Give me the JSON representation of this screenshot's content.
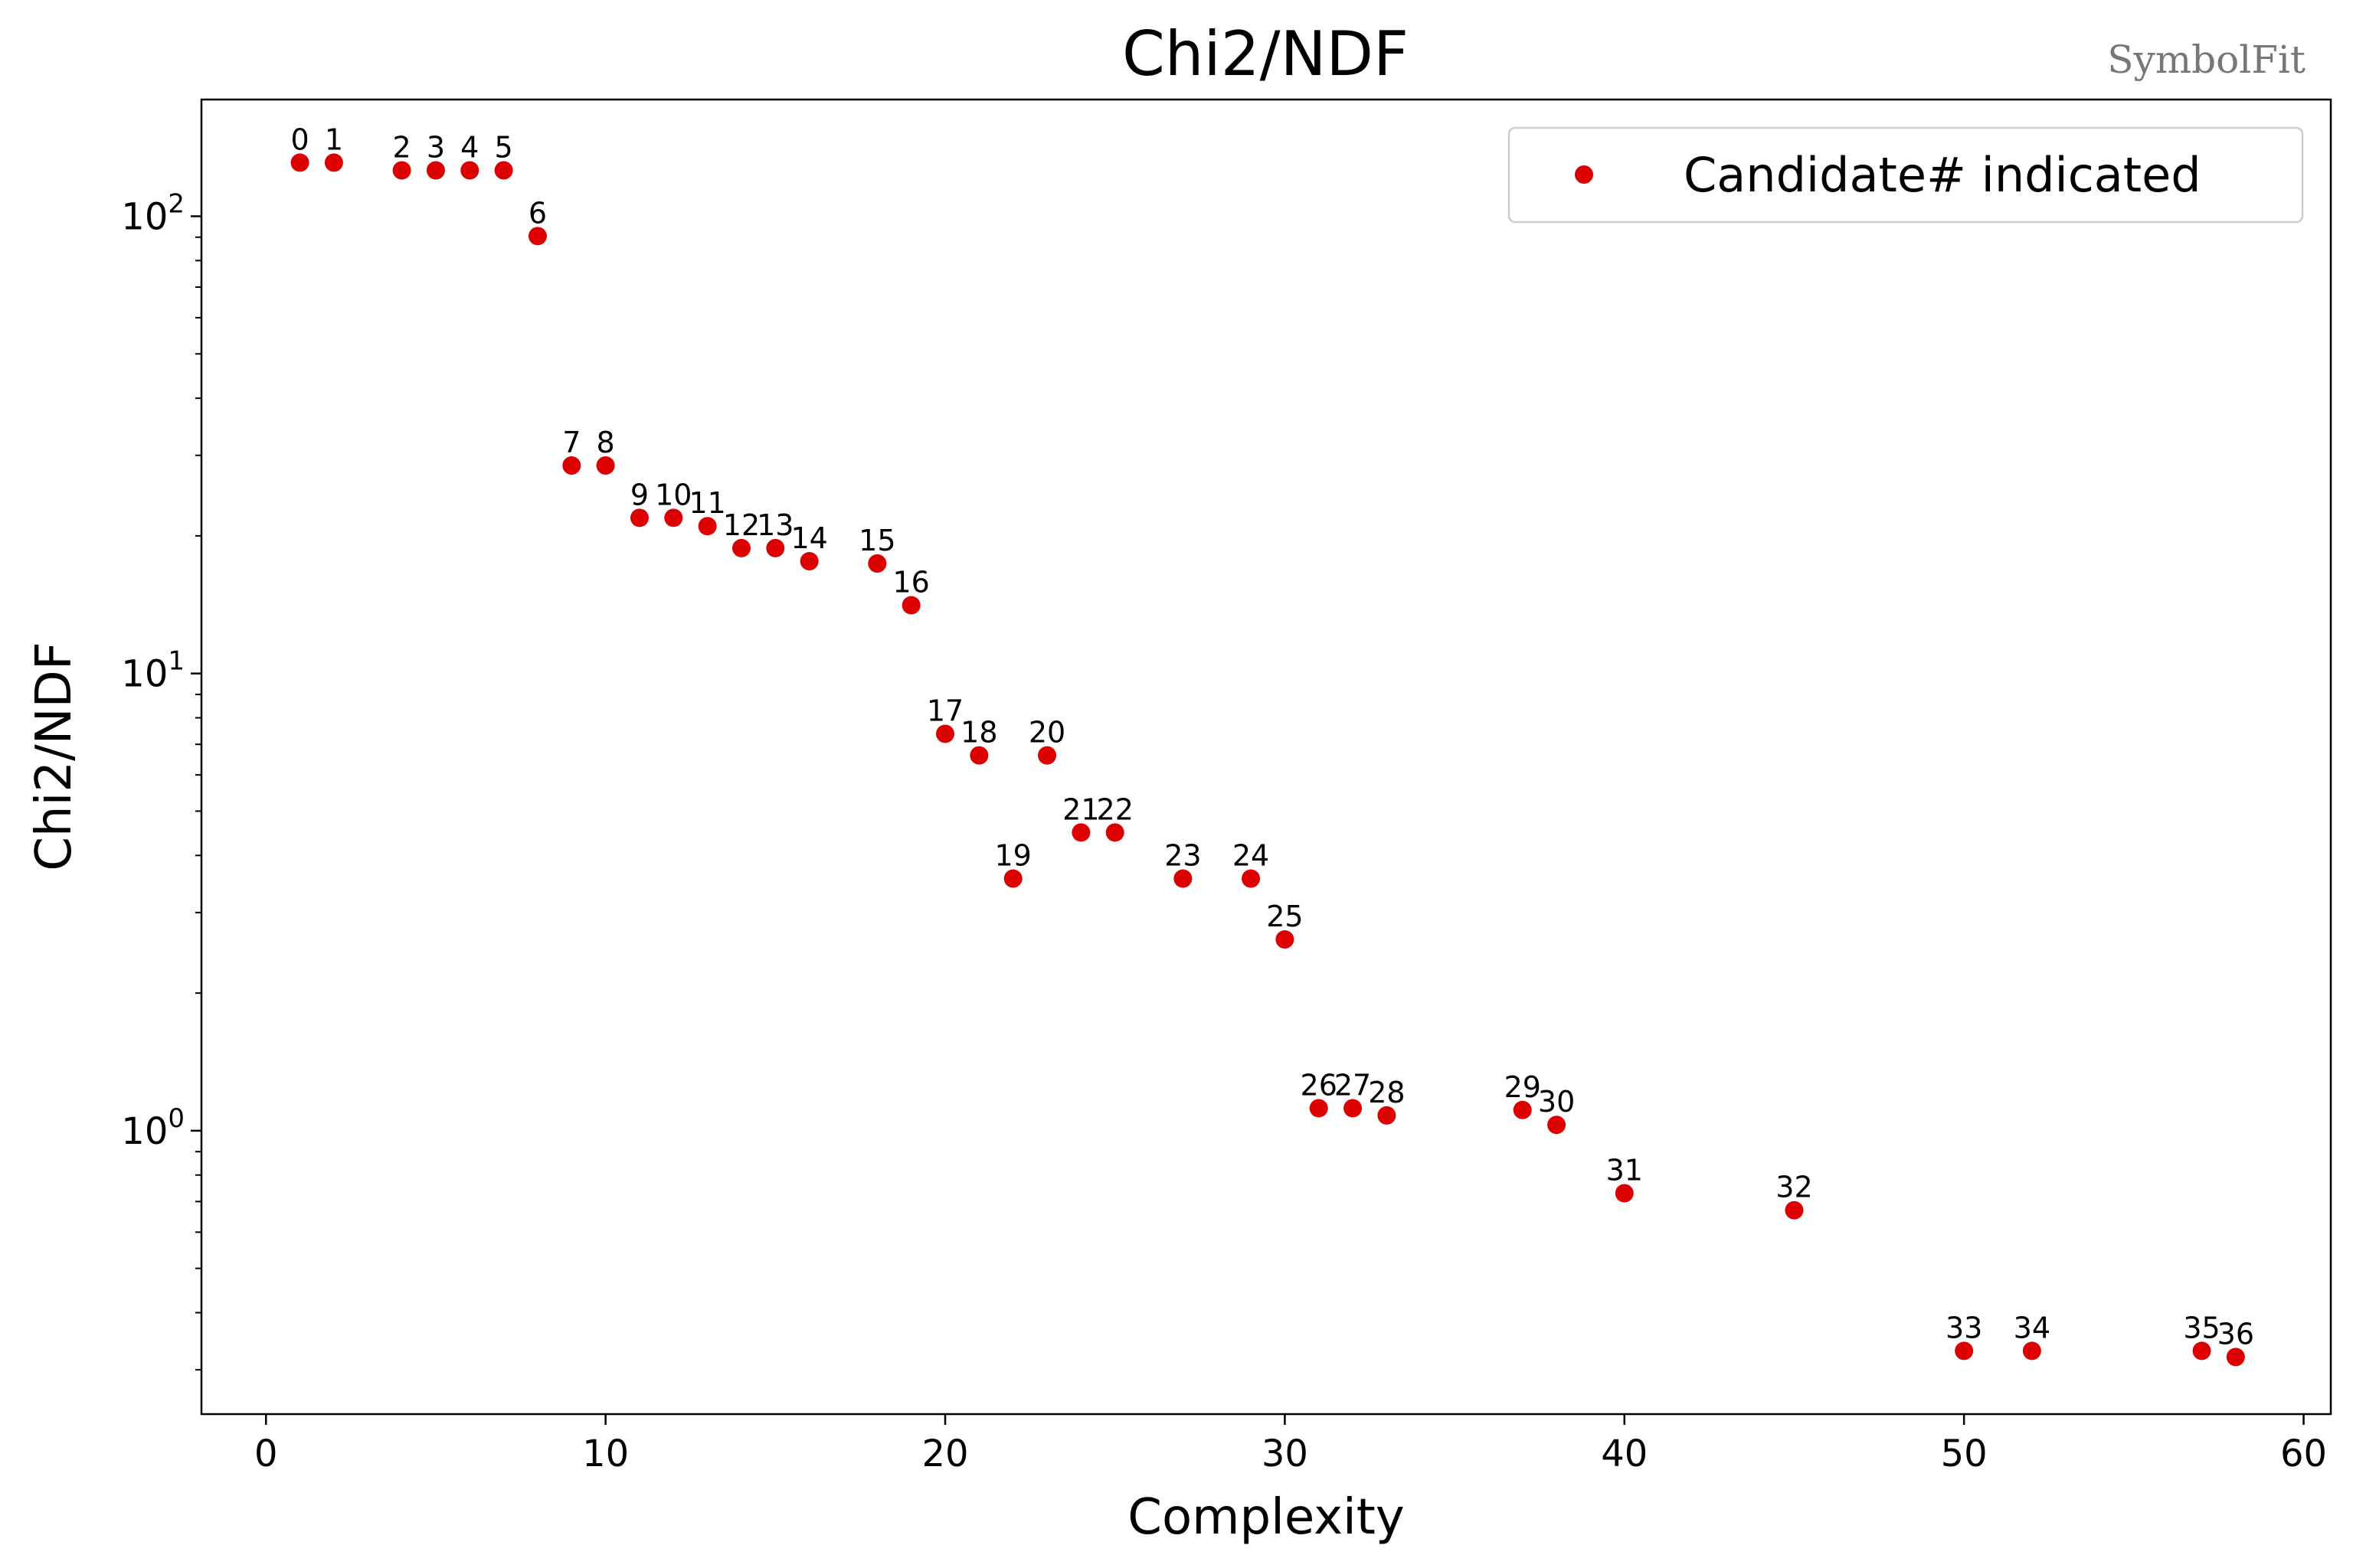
{
  "chart_data": {
    "type": "scatter",
    "title": "Chi2/NDF",
    "xlabel": "Complexity",
    "ylabel": "Chi2/NDF",
    "xlim": [
      -1.9,
      60.8
    ],
    "ylim": [
      0.24,
      180
    ],
    "yscale": "log",
    "grid": false,
    "x_ticks": [
      0,
      10,
      20,
      30,
      40,
      50,
      60
    ],
    "x_tick_labels": [
      "0",
      "10",
      "20",
      "30",
      "40",
      "50",
      "60"
    ],
    "y_major_ticks": [
      1,
      10,
      100
    ],
    "y_major_tick_labels": [
      {
        "base": "10",
        "exp": "0"
      },
      {
        "base": "10",
        "exp": "1"
      },
      {
        "base": "10",
        "exp": "2"
      }
    ],
    "y_minor_ticks": [
      0.3,
      0.4,
      0.5,
      0.6,
      0.7,
      0.8,
      0.9,
      2,
      3,
      4,
      5,
      6,
      7,
      8,
      9,
      20,
      30,
      40,
      50,
      60,
      70,
      80,
      90
    ],
    "marker_color": "#dd0000",
    "legend": {
      "position": "top-right",
      "entries": [
        {
          "label": "Candidate# indicated"
        }
      ]
    },
    "watermark": "SymbolFit",
    "series": [
      {
        "points": [
          {
            "id": "0",
            "x": 1,
            "y": 131
          },
          {
            "id": "1",
            "x": 2,
            "y": 131
          },
          {
            "id": "2",
            "x": 4,
            "y": 126
          },
          {
            "id": "3",
            "x": 5,
            "y": 126
          },
          {
            "id": "4",
            "x": 6,
            "y": 126
          },
          {
            "id": "5",
            "x": 7,
            "y": 126
          },
          {
            "id": "6",
            "x": 8,
            "y": 90.5
          },
          {
            "id": "7",
            "x": 9,
            "y": 28.5
          },
          {
            "id": "8",
            "x": 10,
            "y": 28.5
          },
          {
            "id": "9",
            "x": 11,
            "y": 21.9
          },
          {
            "id": "10",
            "x": 12,
            "y": 21.9
          },
          {
            "id": "11",
            "x": 13,
            "y": 21.0
          },
          {
            "id": "12",
            "x": 14,
            "y": 18.8
          },
          {
            "id": "13",
            "x": 15,
            "y": 18.8
          },
          {
            "id": "14",
            "x": 16,
            "y": 17.6
          },
          {
            "id": "15",
            "x": 18,
            "y": 17.4
          },
          {
            "id": "16",
            "x": 19,
            "y": 14.1
          },
          {
            "id": "17",
            "x": 20,
            "y": 7.38
          },
          {
            "id": "18",
            "x": 21,
            "y": 6.62
          },
          {
            "id": "19",
            "x": 22,
            "y": 3.56
          },
          {
            "id": "20",
            "x": 23,
            "y": 6.62
          },
          {
            "id": "21",
            "x": 24,
            "y": 4.49
          },
          {
            "id": "22",
            "x": 25,
            "y": 4.49
          },
          {
            "id": "23",
            "x": 27,
            "y": 3.56
          },
          {
            "id": "24",
            "x": 29,
            "y": 3.56
          },
          {
            "id": "25",
            "x": 30,
            "y": 2.62
          },
          {
            "id": "26",
            "x": 31,
            "y": 1.12
          },
          {
            "id": "27",
            "x": 32,
            "y": 1.12
          },
          {
            "id": "28",
            "x": 33,
            "y": 1.08
          },
          {
            "id": "29",
            "x": 37,
            "y": 1.11
          },
          {
            "id": "30",
            "x": 38,
            "y": 1.03
          },
          {
            "id": "31",
            "x": 40,
            "y": 0.73
          },
          {
            "id": "32",
            "x": 45,
            "y": 0.67
          },
          {
            "id": "33",
            "x": 50,
            "y": 0.33
          },
          {
            "id": "34",
            "x": 52,
            "y": 0.33
          },
          {
            "id": "35",
            "x": 57,
            "y": 0.33
          },
          {
            "id": "36",
            "x": 58,
            "y": 0.32
          }
        ]
      }
    ]
  }
}
